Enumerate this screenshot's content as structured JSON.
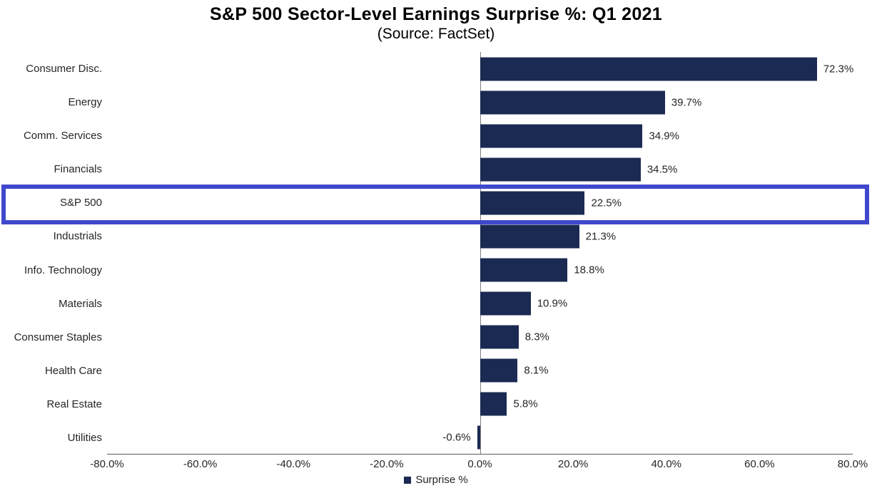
{
  "title": "S&P 500 Sector-Level Earnings Surprise %: Q1 2021",
  "subtitle": "(Source: FactSet)",
  "colors": {
    "bar": "#1B2A52",
    "highlight_box": "#3F48CC",
    "zero_line": "#808080",
    "axis_line": "#595959"
  },
  "chart_data": {
    "type": "bar",
    "orientation": "horizontal",
    "title": "S&P 500 Sector-Level Earnings Surprise %: Q1 2021",
    "subtitle": "(Source: FactSet)",
    "categories": [
      "Consumer Disc.",
      "Energy",
      "Comm. Services",
      "Financials",
      "S&P 500",
      "Industrials",
      "Info. Technology",
      "Materials",
      "Consumer Staples",
      "Health Care",
      "Real Estate",
      "Utilities"
    ],
    "values": [
      72.3,
      39.7,
      34.9,
      34.5,
      22.5,
      21.3,
      18.8,
      10.9,
      8.3,
      8.1,
      5.8,
      -0.6
    ],
    "labels": [
      "72.3%",
      "39.7%",
      "34.9%",
      "34.5%",
      "22.5%",
      "21.3%",
      "18.8%",
      "10.9%",
      "8.3%",
      "8.1%",
      "5.8%",
      "-0.6%"
    ],
    "xlabel": "",
    "ylabel": "",
    "xlim": [
      -80,
      80
    ],
    "x_ticks": [
      "-80.0%",
      "-60.0%",
      "-40.0%",
      "-20.0%",
      "0.0%",
      "20.0%",
      "40.0%",
      "60.0%",
      "80.0%"
    ],
    "grid": false,
    "legend_position": "bottom",
    "legend": [
      {
        "label": "Surprise %",
        "color": "#1B2A52"
      }
    ],
    "highlighted_category": "S&P 500"
  }
}
